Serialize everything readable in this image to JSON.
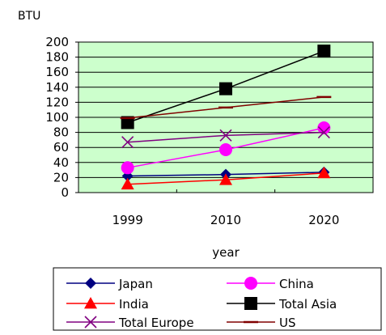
{
  "chart_data": {
    "type": "line",
    "title": "",
    "ylabel": "BTU",
    "xlabel": "year",
    "categories": [
      "1999",
      "2010",
      "2020"
    ],
    "ylim": [
      0,
      200
    ],
    "yticks": [
      0,
      20,
      40,
      60,
      80,
      100,
      120,
      140,
      160,
      180,
      200
    ],
    "grid": true,
    "plot_background": "#ccffcc",
    "legend_position": "bottom",
    "series": [
      {
        "name": "Japan",
        "values": [
          22,
          24,
          27
        ],
        "color": "#000080",
        "marker": "diamond"
      },
      {
        "name": "China",
        "values": [
          33,
          57,
          86
        ],
        "color": "#ff00ff",
        "marker": "circle"
      },
      {
        "name": "India",
        "values": [
          11,
          17,
          26
        ],
        "color": "#ff0000",
        "marker": "triangle"
      },
      {
        "name": "Total Asia",
        "values": [
          93,
          138,
          188
        ],
        "color": "#000000",
        "marker": "square"
      },
      {
        "name": "Total Europe",
        "values": [
          67,
          76,
          80
        ],
        "color": "#800080",
        "marker": "x"
      },
      {
        "name": "US",
        "values": [
          99,
          113,
          127
        ],
        "color": "#800000",
        "marker": "dash"
      }
    ]
  }
}
